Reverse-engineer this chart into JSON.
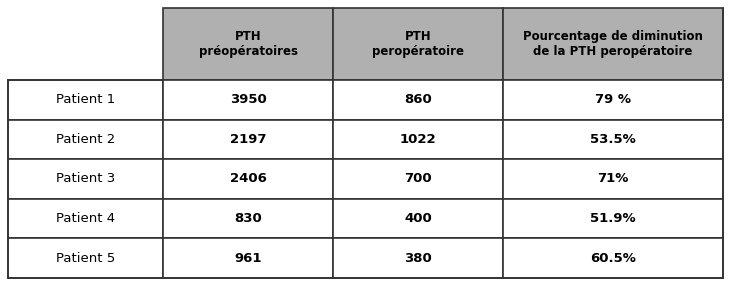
{
  "col_headers": [
    "PTH\npréopératoires",
    "PTH\nperopératoire",
    "Pourcentage de diminution\nde la PTH peropératoire"
  ],
  "row_labels": [
    "Patient 1",
    "Patient 2",
    "Patient 3",
    "Patient 4",
    "Patient 5"
  ],
  "table_data": [
    [
      "3950",
      "860",
      "79 %"
    ],
    [
      "2197",
      "1022",
      "53.5%"
    ],
    [
      "2406",
      "700",
      "71%"
    ],
    [
      "830",
      "400",
      "51.9%"
    ],
    [
      "961",
      "380",
      "60.5%"
    ]
  ],
  "header_bg": "#b0b0b0",
  "header_text_color": "#000000",
  "row_label_color": "#000000",
  "cell_text_color": "#000000",
  "bg_color": "#ffffff",
  "border_color": "#333333",
  "font_size_header": 8.5,
  "font_size_data": 9.5,
  "font_size_row_label": 9.5,
  "fig_width": 7.31,
  "fig_height": 2.86,
  "dpi": 100
}
